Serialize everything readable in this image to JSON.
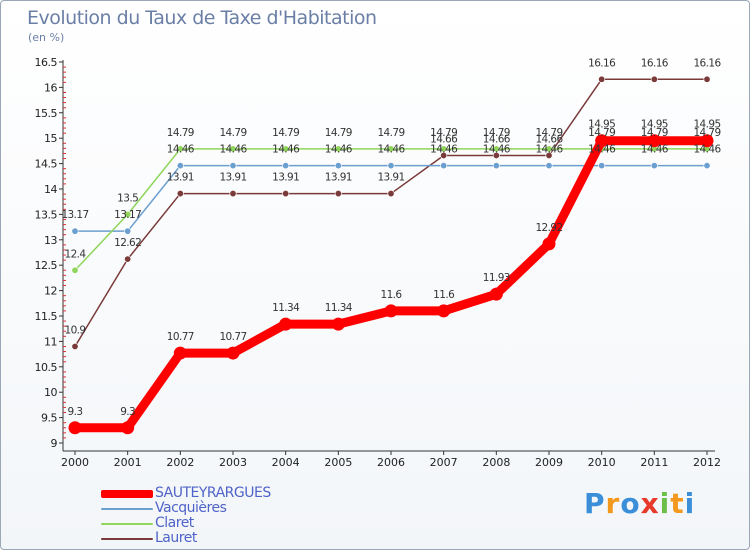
{
  "header": {
    "title": "Evolution du Taux de Taxe d'Habitation",
    "subtitle": "(en %)"
  },
  "brand": {
    "logo_text": "Proxiti"
  },
  "chart_data": {
    "type": "line",
    "title": "Evolution du Taux de Taxe d'Habitation",
    "ylabel": "(en %)",
    "xlabel": "",
    "x": [
      "2000",
      "2001",
      "2002",
      "2003",
      "2004",
      "2005",
      "2006",
      "2007",
      "2008",
      "2009",
      "2010",
      "2011",
      "2012"
    ],
    "ylim": [
      9,
      16.5
    ],
    "yticks": [
      "9",
      "9.5",
      "10",
      "10.5",
      "11",
      "11.5",
      "12",
      "12.5",
      "13",
      "13.5",
      "14",
      "14.5",
      "15",
      "15.5",
      "16",
      "16.5"
    ],
    "grid": false,
    "legend": "bottom-left",
    "series": [
      {
        "name": "SAUTEYRARGUES",
        "color": "#ff0000",
        "values": [
          9.3,
          9.3,
          10.77,
          10.77,
          11.34,
          11.34,
          11.6,
          11.6,
          11.93,
          12.92,
          14.95,
          14.95,
          14.95
        ],
        "labels": [
          "9.3",
          "9.3",
          "10.77",
          "10.77",
          "11.34",
          "11.34",
          "11.6",
          "11.6",
          "11.93",
          "12.92",
          "14.95",
          "14.95",
          "14.95"
        ]
      },
      {
        "name": "Vacquières",
        "color": "#6a9fd0",
        "values": [
          13.17,
          13.17,
          14.46,
          14.46,
          14.46,
          14.46,
          14.46,
          14.46,
          14.46,
          14.46,
          14.46,
          14.46,
          14.46
        ],
        "labels": [
          "13.17",
          "13.17",
          "14.46",
          "14.46",
          "14.46",
          "14.46",
          "14.46",
          "14.46",
          "14.46",
          "14.46",
          "14.46",
          "14.46",
          "14.46"
        ]
      },
      {
        "name": "Claret",
        "color": "#8fd65a",
        "values": [
          12.4,
          13.5,
          14.79,
          14.79,
          14.79,
          14.79,
          14.79,
          14.79,
          14.79,
          14.79,
          14.79,
          14.79,
          14.79
        ],
        "labels": [
          "12.4",
          "13.5",
          "14.79",
          "14.79",
          "14.79",
          "14.79",
          "14.79",
          "14.79",
          "14.79",
          "14.79",
          "14.79",
          "14.79",
          "14.79"
        ]
      },
      {
        "name": "Lauret",
        "color": "#7a3a3a",
        "values": [
          10.9,
          12.62,
          13.91,
          13.91,
          13.91,
          13.91,
          13.91,
          14.66,
          14.66,
          14.66,
          16.16,
          16.16,
          16.16
        ],
        "labels": [
          "10.9",
          "12.62",
          "13.91",
          "13.91",
          "13.91",
          "13.91",
          "13.91",
          "14.66",
          "14.66",
          "14.66",
          "16.16",
          "16.16",
          "16.16"
        ]
      }
    ]
  }
}
